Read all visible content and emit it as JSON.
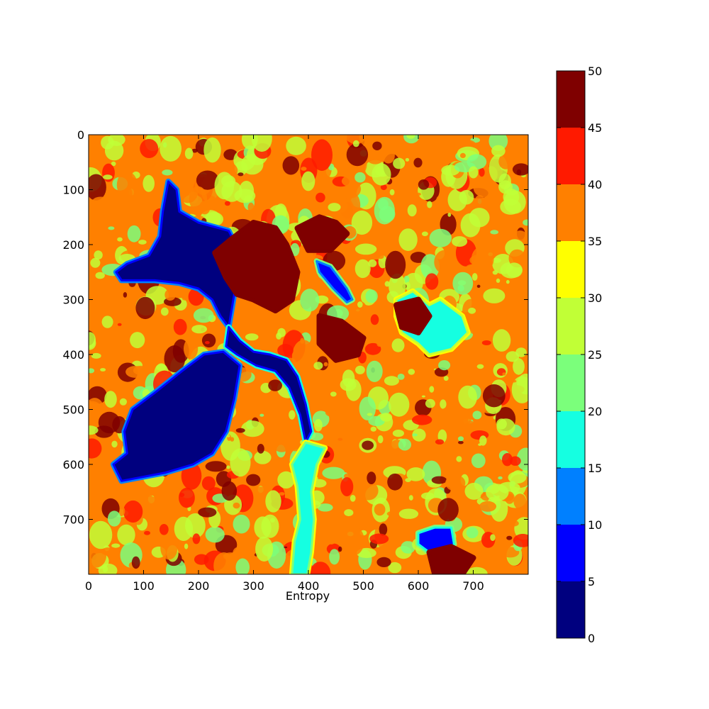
{
  "chart_data": {
    "type": "heatmap",
    "title": "",
    "xlabel": "Entropy",
    "ylabel": "",
    "image_size": [
      800,
      800
    ],
    "xlim": [
      0,
      800
    ],
    "ylim": [
      800,
      0
    ],
    "x_ticks": [
      0,
      100,
      200,
      300,
      400,
      500,
      600,
      700
    ],
    "y_ticks": [
      0,
      100,
      200,
      300,
      400,
      500,
      600,
      700
    ],
    "colorbar": {
      "colormap": "jet",
      "range": [
        0,
        50
      ],
      "ticks": [
        0,
        5,
        10,
        15,
        20,
        25,
        30,
        35,
        40,
        45,
        50
      ],
      "levels": [
        {
          "min": 0,
          "max": 5,
          "color": "#00007f"
        },
        {
          "min": 5,
          "max": 10,
          "color": "#0000ff"
        },
        {
          "min": 10,
          "max": 15,
          "color": "#0080ff"
        },
        {
          "min": 15,
          "max": 20,
          "color": "#15ffe1"
        },
        {
          "min": 20,
          "max": 25,
          "color": "#7bff7b"
        },
        {
          "min": 25,
          "max": 30,
          "color": "#c1ff36"
        },
        {
          "min": 30,
          "max": 35,
          "color": "#ffff00"
        },
        {
          "min": 35,
          "max": 40,
          "color": "#ff8000"
        },
        {
          "min": 40,
          "max": 45,
          "color": "#ff1a00"
        },
        {
          "min": 45,
          "max": 50,
          "color": "#7f0000"
        }
      ]
    },
    "description_levels": "Dominant values 25-45 (orange/yellow-green); low-entropy lake region (0-10) around x 60-280, y 90-640; dark red (45-50) patches around x 230-500, y 130-480",
    "regions": [
      {
        "name": "lake-upper",
        "value": 2,
        "points": [
          [
            145,
            85
          ],
          [
            160,
            100
          ],
          [
            165,
            140
          ],
          [
            200,
            160
          ],
          [
            255,
            175
          ],
          [
            275,
            215
          ],
          [
            265,
            290
          ],
          [
            255,
            350
          ],
          [
            240,
            330
          ],
          [
            225,
            300
          ],
          [
            200,
            280
          ],
          [
            165,
            270
          ],
          [
            120,
            265
          ],
          [
            60,
            265
          ],
          [
            50,
            250
          ],
          [
            70,
            235
          ],
          [
            110,
            220
          ],
          [
            130,
            185
          ],
          [
            135,
            140
          ]
        ]
      },
      {
        "name": "lake-lower",
        "value": 2,
        "points": [
          [
            245,
            395
          ],
          [
            275,
            420
          ],
          [
            265,
            480
          ],
          [
            250,
            540
          ],
          [
            225,
            580
          ],
          [
            190,
            600
          ],
          [
            140,
            615
          ],
          [
            60,
            630
          ],
          [
            45,
            600
          ],
          [
            70,
            580
          ],
          [
            65,
            540
          ],
          [
            80,
            500
          ],
          [
            120,
            470
          ],
          [
            170,
            430
          ],
          [
            210,
            400
          ]
        ]
      },
      {
        "name": "channel",
        "value": 3,
        "points": [
          [
            255,
            350
          ],
          [
            275,
            375
          ],
          [
            300,
            395
          ],
          [
            330,
            400
          ],
          [
            360,
            410
          ],
          [
            380,
            440
          ],
          [
            395,
            490
          ],
          [
            405,
            540
          ],
          [
            395,
            560
          ],
          [
            385,
            510
          ],
          [
            365,
            460
          ],
          [
            340,
            430
          ],
          [
            305,
            420
          ],
          [
            270,
            400
          ],
          [
            250,
            385
          ]
        ]
      },
      {
        "name": "river-south",
        "value": 18,
        "points": [
          [
            395,
            560
          ],
          [
            430,
            570
          ],
          [
            415,
            600
          ],
          [
            405,
            650
          ],
          [
            410,
            700
          ],
          [
            405,
            760
          ],
          [
            398,
            800
          ],
          [
            370,
            800
          ],
          [
            375,
            740
          ],
          [
            385,
            700
          ],
          [
            380,
            640
          ],
          [
            370,
            600
          ]
        ]
      },
      {
        "name": "slit",
        "value": 8,
        "points": [
          [
            415,
            230
          ],
          [
            440,
            240
          ],
          [
            470,
            280
          ],
          [
            480,
            300
          ],
          [
            470,
            305
          ],
          [
            445,
            280
          ],
          [
            420,
            250
          ]
        ]
      },
      {
        "name": "blue-patch-se",
        "value": 9,
        "points": [
          [
            600,
            725
          ],
          [
            630,
            715
          ],
          [
            660,
            715
          ],
          [
            665,
            745
          ],
          [
            650,
            765
          ],
          [
            620,
            760
          ],
          [
            600,
            745
          ]
        ]
      },
      {
        "name": "cyan-patch-ne",
        "value": 19,
        "points": [
          [
            560,
            300
          ],
          [
            590,
            285
          ],
          [
            620,
            310
          ],
          [
            640,
            300
          ],
          [
            680,
            330
          ],
          [
            690,
            360
          ],
          [
            660,
            390
          ],
          [
            620,
            400
          ],
          [
            600,
            380
          ],
          [
            570,
            360
          ],
          [
            560,
            330
          ]
        ]
      },
      {
        "name": "dark-red-1",
        "value": 47,
        "points": [
          [
            230,
            215
          ],
          [
            260,
            190
          ],
          [
            300,
            160
          ],
          [
            340,
            170
          ],
          [
            360,
            200
          ],
          [
            380,
            250
          ],
          [
            370,
            300
          ],
          [
            340,
            320
          ],
          [
            300,
            300
          ],
          [
            270,
            290
          ],
          [
            250,
            260
          ]
        ]
      },
      {
        "name": "dark-red-2",
        "value": 47,
        "points": [
          [
            380,
            170
          ],
          [
            420,
            150
          ],
          [
            450,
            160
          ],
          [
            470,
            180
          ],
          [
            440,
            210
          ],
          [
            400,
            210
          ]
        ]
      },
      {
        "name": "dark-red-3",
        "value": 47,
        "points": [
          [
            420,
            330
          ],
          [
            460,
            340
          ],
          [
            500,
            370
          ],
          [
            490,
            400
          ],
          [
            450,
            410
          ],
          [
            420,
            380
          ]
        ]
      },
      {
        "name": "dark-red-4",
        "value": 47,
        "points": [
          [
            560,
            310
          ],
          [
            600,
            300
          ],
          [
            620,
            330
          ],
          [
            600,
            360
          ],
          [
            570,
            350
          ]
        ]
      },
      {
        "name": "dark-red-5",
        "value": 47,
        "points": [
          [
            620,
            760
          ],
          [
            660,
            750
          ],
          [
            700,
            770
          ],
          [
            680,
            800
          ],
          [
            630,
            800
          ]
        ]
      }
    ]
  }
}
